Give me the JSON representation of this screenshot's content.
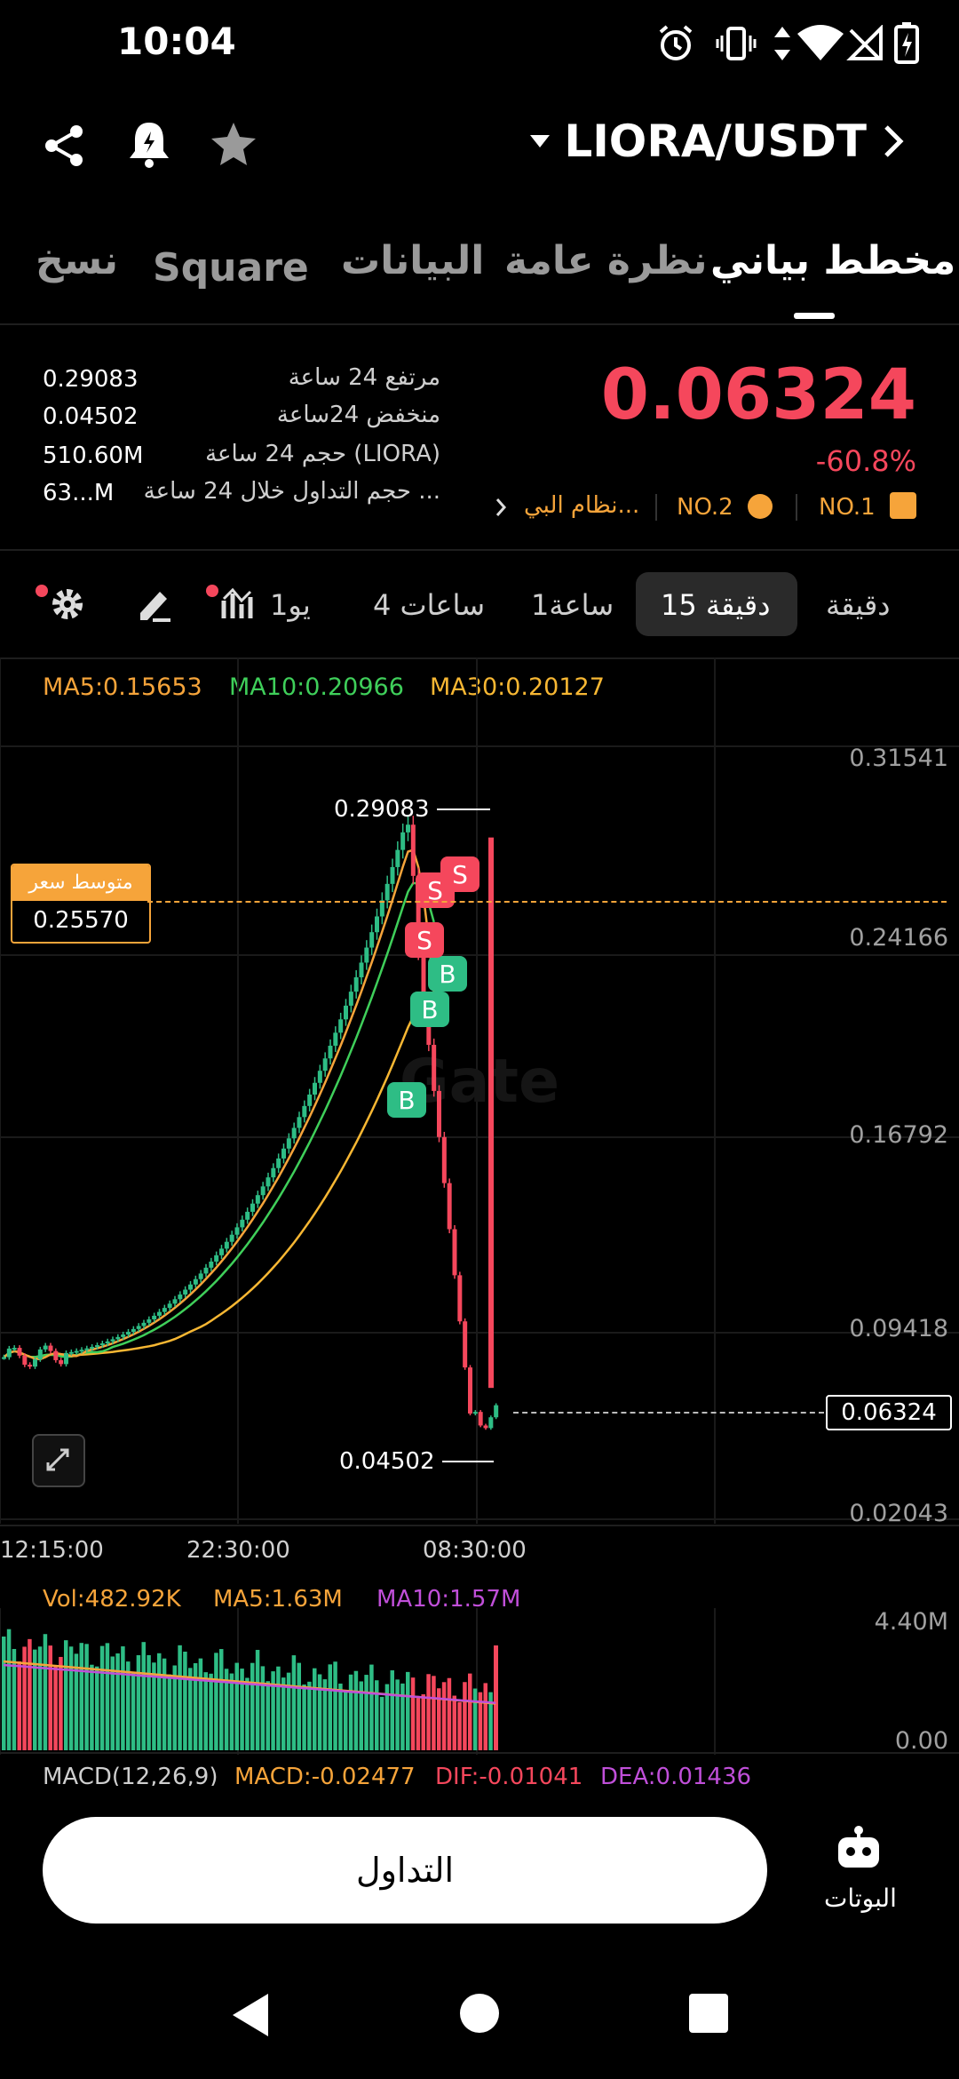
{
  "status": {
    "time": "10:04"
  },
  "header": {
    "pair": "LIORA/USDT"
  },
  "tabs": [
    {
      "label": "مخطط بياني",
      "active": true
    },
    {
      "label": "نظرة عامة"
    },
    {
      "label": "البيانات"
    },
    {
      "label": "Square"
    },
    {
      "label": "نسخ"
    }
  ],
  "ticker": {
    "price": "0.06324",
    "change": "-60.8%",
    "stats": [
      {
        "label": "مرتفع 24 ساعة",
        "value": "0.29083"
      },
      {
        "label": "منخفض 24ساعة",
        "value": "0.04502"
      },
      {
        "label": "حجم 24 ساعة (LIORA)",
        "value": "510.60M"
      },
      {
        "label": "حجم التداول خلال 24 ساعة ...",
        "value": "63...M"
      }
    ],
    "rank1": "NO.1",
    "rank2": "NO.2",
    "ecosystem": "نظام البي..."
  },
  "intervals": {
    "items": [
      "دقيقة",
      "15 دقيقة",
      "1ساعة",
      "4 ساعات",
      "1يو"
    ],
    "active": "15 دقيقة"
  },
  "ma_legend": {
    "ma5": "MA5:0.15653",
    "ma10": "MA10:0.20966",
    "ma30": "MA30:0.20127"
  },
  "chart_data": {
    "type": "candlestick",
    "y_ticks": [
      "0.31541",
      "0.24166",
      "0.16792",
      "0.09418",
      "0.02043"
    ],
    "x_ticks": [
      "12:15:00",
      "22:30:00",
      "08:30:00"
    ],
    "high_marker": "0.29083",
    "low_marker": "0.04502",
    "avg_price_label": "متوسط سعر",
    "avg_price_value": "0.25570",
    "current_price": "0.06324",
    "trade_markers": [
      "B",
      "B",
      "B",
      "S",
      "S",
      "S"
    ],
    "colors": {
      "up": "#2ebd85",
      "down": "#f5475c",
      "ma5": "#f6a43a",
      "ma10": "#3fcf5a",
      "ma30": "#f7b733"
    }
  },
  "volume": {
    "vol": "Vol:482.92K",
    "ma5": "MA5:1.63M",
    "ma10": "MA10:1.57M",
    "top": "4.40M",
    "bottom": "0.00"
  },
  "macd": {
    "name": "MACD(12,26,9)",
    "macd": "MACD:-0.02477",
    "dif": "DIF:-0.01041",
    "dea": "DEA:0.01436"
  },
  "footer": {
    "trade": "التداول",
    "bots": "البوتات"
  }
}
